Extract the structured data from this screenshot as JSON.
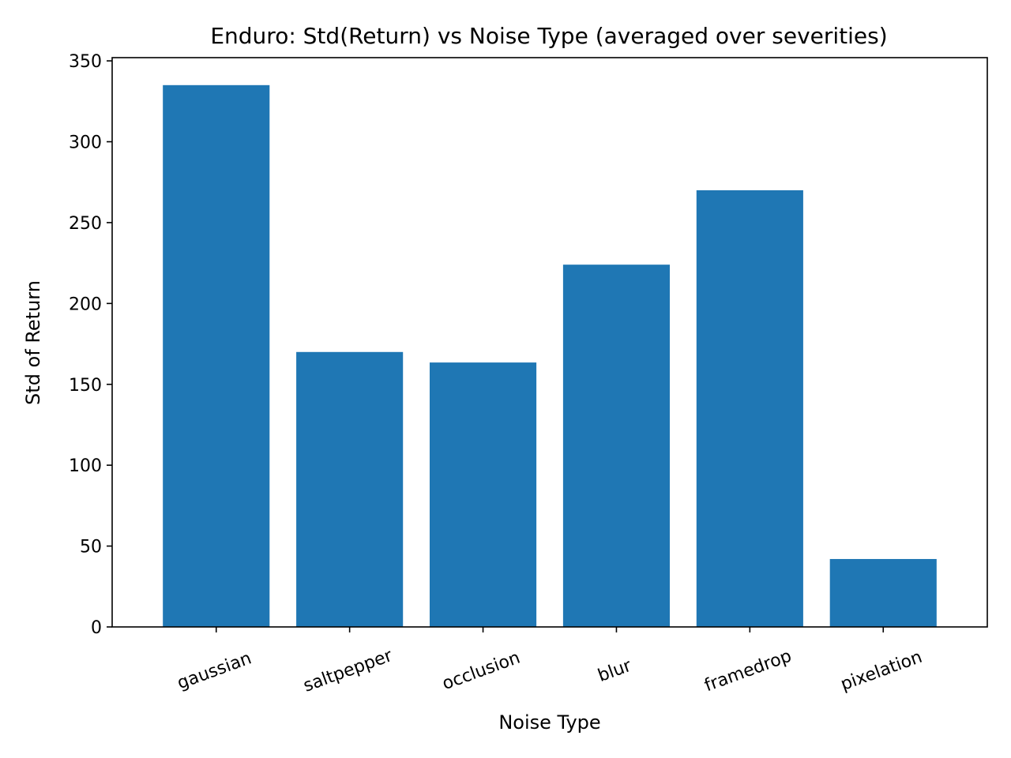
{
  "chart_data": {
    "type": "bar",
    "title": "Enduro: Std(Return) vs Noise Type (averaged over severities)",
    "xlabel": "Noise Type",
    "ylabel": "Std of Return",
    "categories": [
      "gaussian",
      "saltpepper",
      "occlusion",
      "blur",
      "framedrop",
      "pixelation"
    ],
    "values": [
      335,
      170,
      163.5,
      224,
      270,
      42
    ],
    "ylim": [
      0,
      352
    ],
    "yticks": [
      0,
      50,
      100,
      150,
      200,
      250,
      300,
      350
    ],
    "bar_color": "#1f77b4",
    "xtick_rotation_deg": -20,
    "grid": false,
    "legend": "none"
  }
}
